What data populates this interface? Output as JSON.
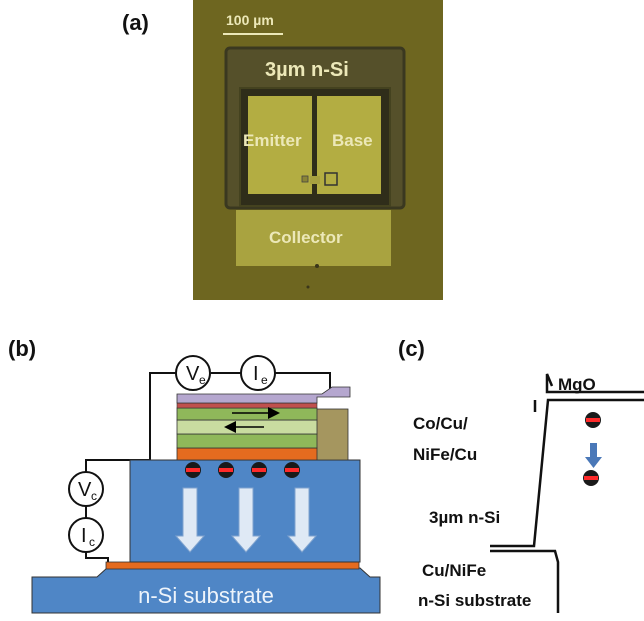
{
  "panel_a": {
    "label": "(a)",
    "scale_bar": "100 µm",
    "mesa": "3µm n-Si",
    "emitter": "Emitter",
    "base": "Base",
    "collector": "Collector"
  },
  "panel_b": {
    "label": "(b)",
    "ve": "V",
    "ve_sub": "e",
    "ie": "I",
    "ie_sub": "e",
    "vc": "V",
    "vc_sub": "c",
    "ic": "I",
    "ic_sub": "c",
    "substrate": "n-Si substrate",
    "colors": {
      "silicon": "#4f86c6",
      "copper": "#e56b1f",
      "green_light": "#c9dca0",
      "green_mid": "#8fb85a",
      "top_layer": "#b5a7cf",
      "electrode": "#a5965f",
      "arrow": "#dfe9f5"
    }
  },
  "panel_c": {
    "label": "(c)",
    "mgo": "MgO",
    "layer1_line1": "Co/Cu/",
    "layer1_line2": "NiFe/Cu",
    "silicon": "3µm n-Si",
    "cu_nife": "Cu/NiFe",
    "substrate": "n-Si substrate"
  }
}
